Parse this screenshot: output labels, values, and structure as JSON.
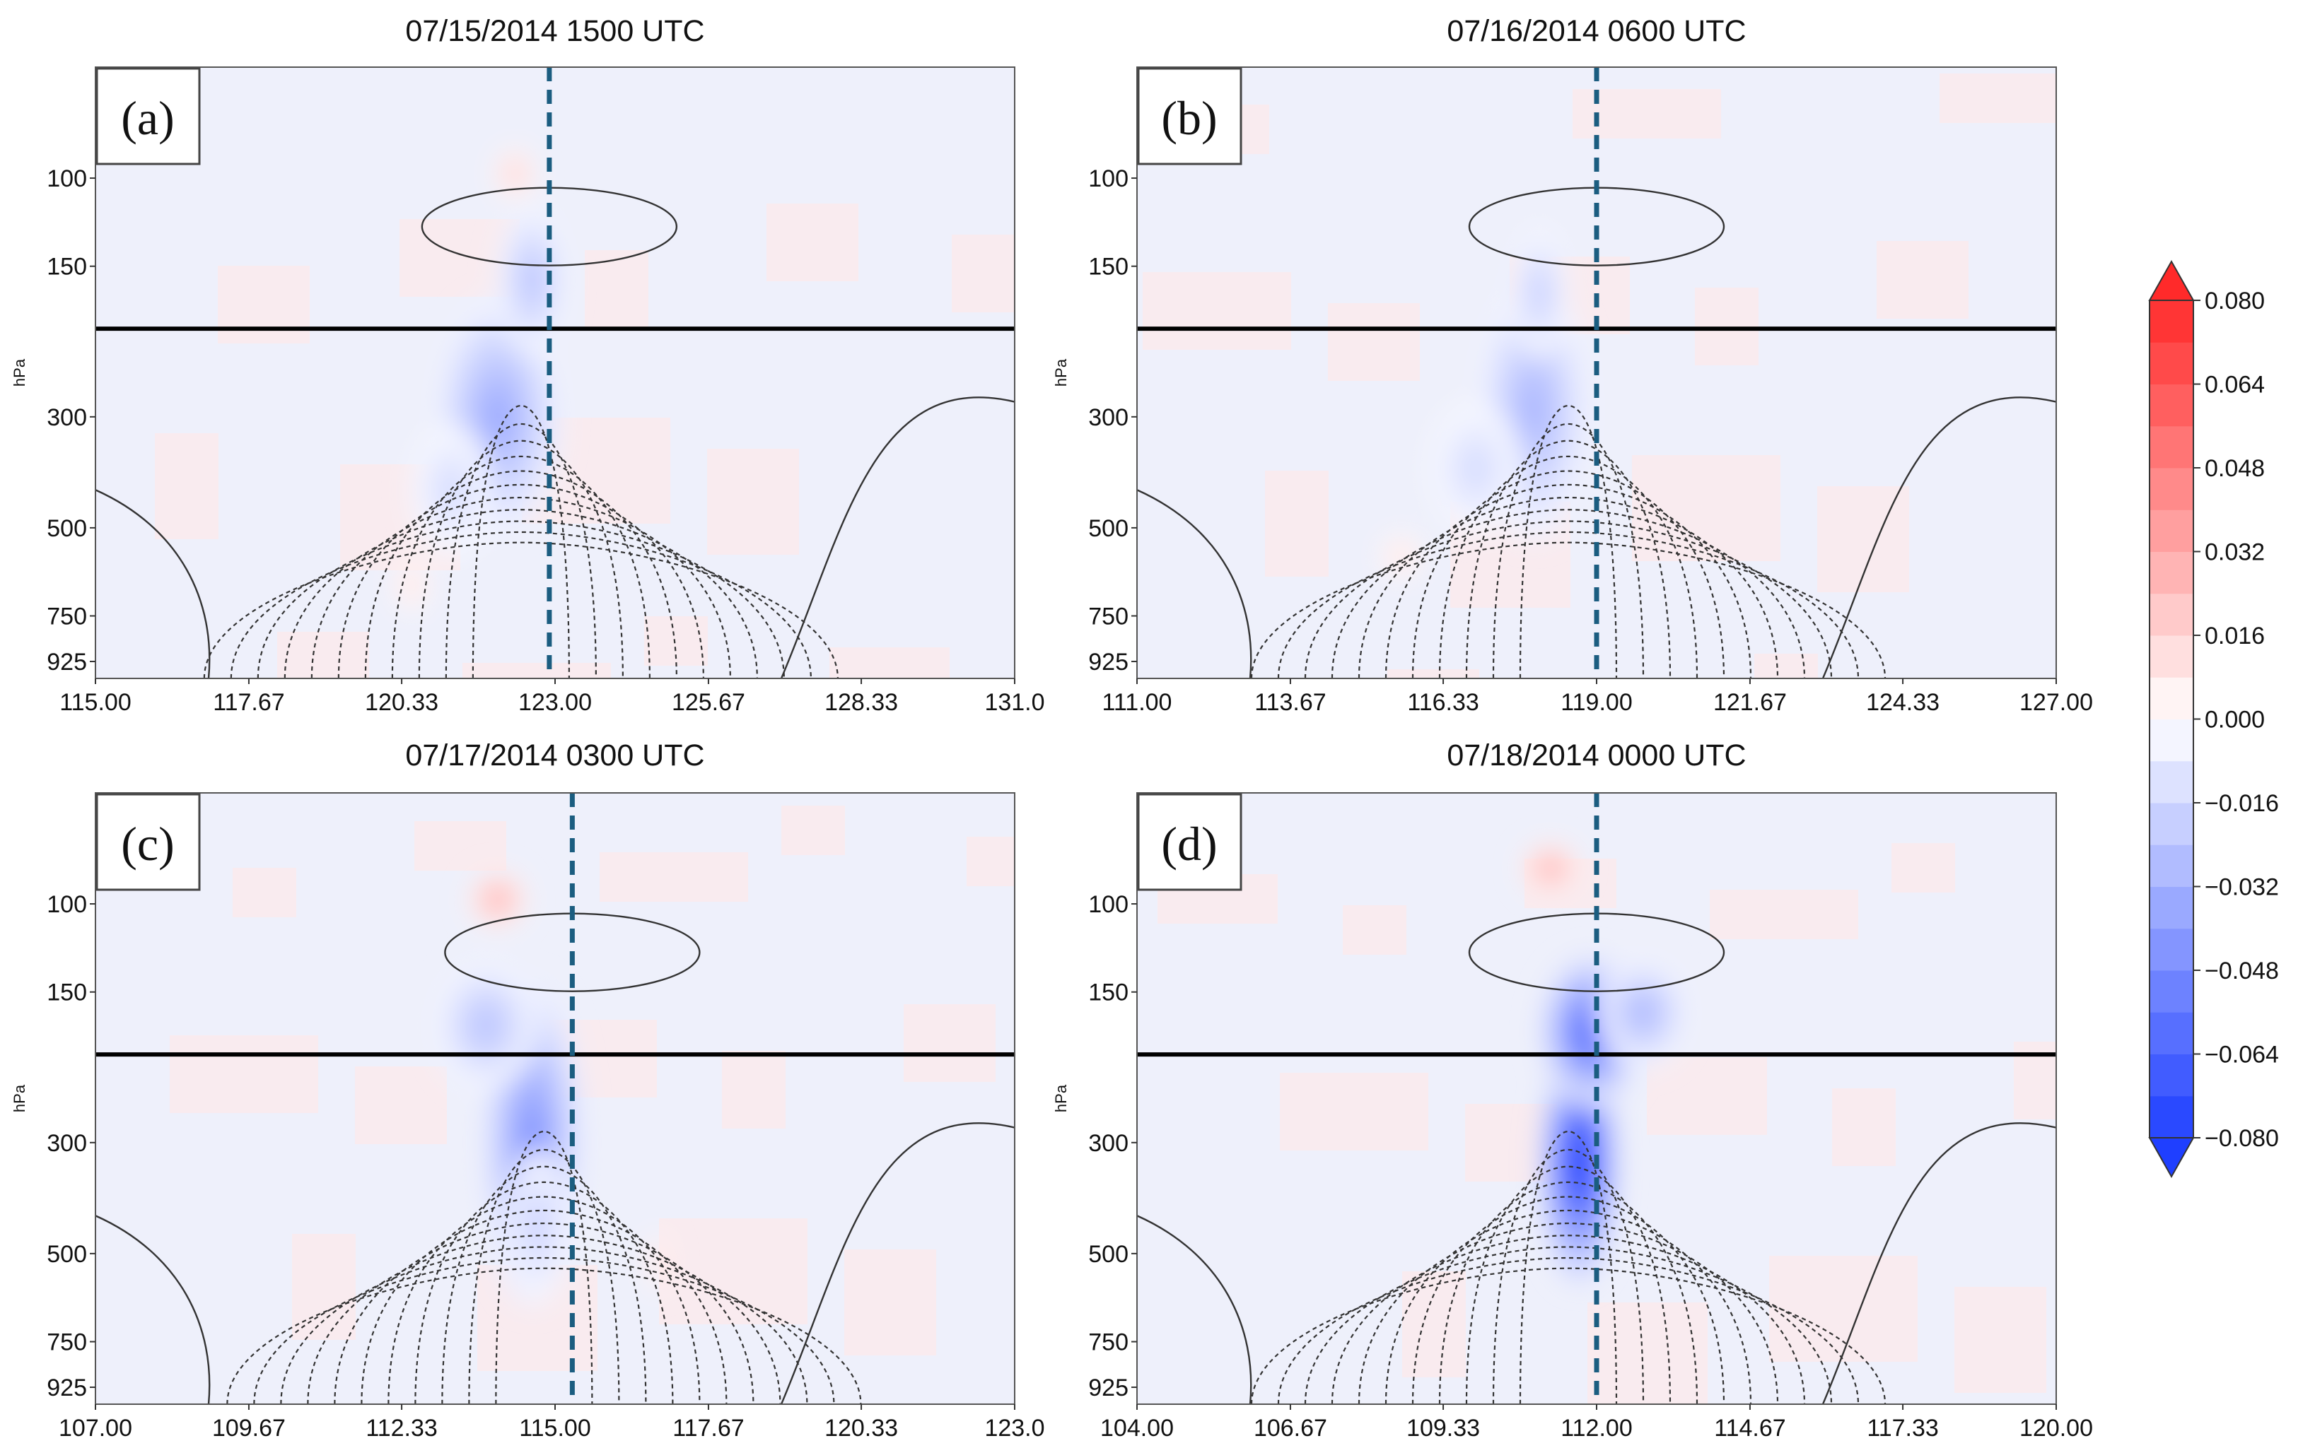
{
  "chart_data": {
    "type": "heatmap",
    "description_units": "pressure (hPa) vs longitude cross-sections",
    "colors": {
      "negative": "#1f3fff",
      "positive": "#ff2a2a",
      "marker_line": "#1b5d80",
      "reference_line": "#000000"
    },
    "colorbar": {
      "min": -0.08,
      "max": 0.08,
      "ticks": [
        "0.080",
        "0.064",
        "0.048",
        "0.032",
        "0.016",
        "0.000",
        "−0.016",
        "−0.032",
        "−0.048",
        "−0.064",
        "−0.080"
      ],
      "tick_values": [
        0.08,
        0.064,
        0.048,
        0.032,
        0.016,
        0.0,
        -0.016,
        -0.032,
        -0.048,
        -0.064,
        -0.08
      ],
      "levels": [
        -0.08,
        -0.072,
        -0.064,
        -0.056,
        -0.048,
        -0.04,
        -0.032,
        -0.024,
        -0.016,
        -0.008,
        0.0,
        0.008,
        0.016,
        0.024,
        0.032,
        0.04,
        0.048,
        0.056,
        0.064,
        0.072,
        0.08
      ]
    },
    "panels": [
      {
        "label": "(a)",
        "title": "07/15/2014 1500 UTC",
        "ylabel": "hPa",
        "yticks": [
          "100",
          "150",
          "300",
          "500",
          "750",
          "925"
        ],
        "ytick_values": [
          100,
          150,
          300,
          500,
          750,
          925
        ],
        "ylim": [
          60,
          1000
        ],
        "xticks": [
          "115.00",
          "117.67",
          "120.33",
          "123.00",
          "125.67",
          "128.33",
          "131.0"
        ],
        "xtick_values": [
          115.0,
          117.67,
          120.33,
          123.0,
          125.67,
          128.33,
          131.0
        ],
        "xlim": [
          115.0,
          131.0
        ],
        "marker_x": 122.9,
        "reference_pressure": 200,
        "blobs": [
          {
            "x": 122.0,
            "p": 300,
            "sx": 1.1,
            "sy": 0.55,
            "v": -0.035
          },
          {
            "x": 122.6,
            "p": 160,
            "sx": 0.6,
            "sy": 0.35,
            "v": -0.025
          },
          {
            "x": 121.2,
            "p": 420,
            "sx": 0.7,
            "sy": 0.3,
            "v": -0.015
          },
          {
            "x": 122.3,
            "p": 98,
            "sx": 0.35,
            "sy": 0.12,
            "v": 0.018
          },
          {
            "x": 120.5,
            "p": 650,
            "sx": 0.3,
            "sy": 0.12,
            "v": 0.012
          }
        ]
      },
      {
        "label": "(b)",
        "title": "07/16/2014 0600 UTC",
        "ylabel": "hPa",
        "yticks": [
          "100",
          "150",
          "300",
          "500",
          "750",
          "925"
        ],
        "ytick_values": [
          100,
          150,
          300,
          500,
          750,
          925
        ],
        "ylim": [
          60,
          1000
        ],
        "xticks": [
          "111.00",
          "113.67",
          "116.33",
          "119.00",
          "121.67",
          "124.33",
          "127.00"
        ],
        "xtick_values": [
          111.0,
          113.67,
          116.33,
          119.0,
          121.67,
          124.33,
          127.0
        ],
        "xlim": [
          111.0,
          127.0
        ],
        "marker_x": 119.0,
        "reference_pressure": 200,
        "blobs": [
          {
            "x": 117.9,
            "p": 290,
            "sx": 1.0,
            "sy": 0.6,
            "v": -0.03
          },
          {
            "x": 118.0,
            "p": 170,
            "sx": 0.5,
            "sy": 0.3,
            "v": -0.02
          },
          {
            "x": 116.9,
            "p": 380,
            "sx": 0.8,
            "sy": 0.3,
            "v": -0.015
          },
          {
            "x": 115.6,
            "p": 570,
            "sx": 0.35,
            "sy": 0.1,
            "v": 0.012
          }
        ]
      },
      {
        "label": "(c)",
        "title": "07/17/2014 0300 UTC",
        "ylabel": "hPa",
        "yticks": [
          "100",
          "150",
          "300",
          "500",
          "750",
          "925"
        ],
        "ytick_values": [
          100,
          150,
          300,
          500,
          750,
          925
        ],
        "ylim": [
          60,
          1000
        ],
        "xticks": [
          "107.00",
          "109.67",
          "112.33",
          "115.00",
          "117.67",
          "120.33",
          "123.0"
        ],
        "xtick_values": [
          107.0,
          109.67,
          112.33,
          115.0,
          117.67,
          120.33,
          123.0
        ],
        "xlim": [
          107.0,
          123.0
        ],
        "marker_x": 115.3,
        "reference_pressure": 200,
        "blobs": [
          {
            "x": 114.6,
            "p": 300,
            "sx": 0.9,
            "sy": 0.75,
            "v": -0.045
          },
          {
            "x": 113.8,
            "p": 175,
            "sx": 0.9,
            "sy": 0.3,
            "v": -0.025
          },
          {
            "x": 114.7,
            "p": 440,
            "sx": 0.5,
            "sy": 0.35,
            "v": -0.02
          },
          {
            "x": 114.0,
            "p": 98,
            "sx": 0.5,
            "sy": 0.13,
            "v": 0.03
          },
          {
            "x": 116.8,
            "p": 520,
            "sx": 0.2,
            "sy": 0.13,
            "v": 0.015
          }
        ]
      },
      {
        "label": "(d)",
        "title": "07/18/2014 0000 UTC",
        "ylabel": "hPa",
        "yticks": [
          "100",
          "150",
          "300",
          "500",
          "750",
          "925"
        ],
        "ytick_values": [
          100,
          150,
          300,
          500,
          750,
          925
        ],
        "ylim": [
          60,
          1000
        ],
        "xticks": [
          "104.00",
          "106.67",
          "109.33",
          "112.00",
          "114.67",
          "117.33",
          "120.00"
        ],
        "xtick_values": [
          104.0,
          106.67,
          109.33,
          112.0,
          114.67,
          117.33,
          120.0
        ],
        "xlim": [
          104.0,
          120.0
        ],
        "marker_x": 112.0,
        "reference_pressure": 200,
        "blobs": [
          {
            "x": 111.7,
            "p": 330,
            "sx": 0.7,
            "sy": 0.55,
            "v": -0.085
          },
          {
            "x": 111.9,
            "p": 180,
            "sx": 0.9,
            "sy": 0.35,
            "v": -0.065
          },
          {
            "x": 112.8,
            "p": 165,
            "sx": 0.8,
            "sy": 0.25,
            "v": -0.03
          },
          {
            "x": 111.2,
            "p": 85,
            "sx": 0.5,
            "sy": 0.12,
            "v": 0.03
          }
        ]
      }
    ]
  }
}
